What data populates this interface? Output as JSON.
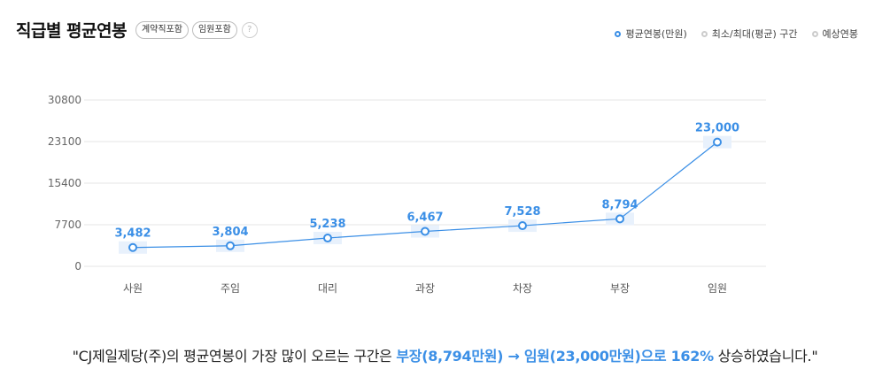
{
  "header": {
    "title": "직급별 평균연봉",
    "badges": [
      "계약직포함",
      "임원포함"
    ],
    "help": "?"
  },
  "legend": [
    {
      "label": "평균연봉(만원)",
      "active": true
    },
    {
      "label": "최소/최대(평균) 구간",
      "active": false
    },
    {
      "label": "예상연봉",
      "active": false
    }
  ],
  "colors": {
    "accent": "#3b8fe6",
    "band": "#e8f1fc",
    "grid": "#e6e6e6"
  },
  "chart_data": {
    "type": "line",
    "categories": [
      "사원",
      "주임",
      "대리",
      "과장",
      "차장",
      "부장",
      "임원"
    ],
    "series": [
      {
        "name": "평균연봉(만원)",
        "values": [
          3482,
          3804,
          5238,
          6467,
          7528,
          8794,
          23000
        ],
        "labels": [
          "3,482",
          "3,804",
          "5,238",
          "6,467",
          "7,528",
          "8,794",
          "23,000"
        ]
      }
    ],
    "yticks": [
      0,
      7700,
      15400,
      23100,
      30800
    ],
    "ylim": [
      0,
      30800
    ],
    "grid": true
  },
  "summary": {
    "prefix": "\"CJ제일제당(주)의 평균연봉이 가장 많이 오르는 구간은 ",
    "highlight": "부장(8,794만원) → 임원(23,000만원)으로 162%",
    "suffix": " 상승하였습니다.\""
  }
}
